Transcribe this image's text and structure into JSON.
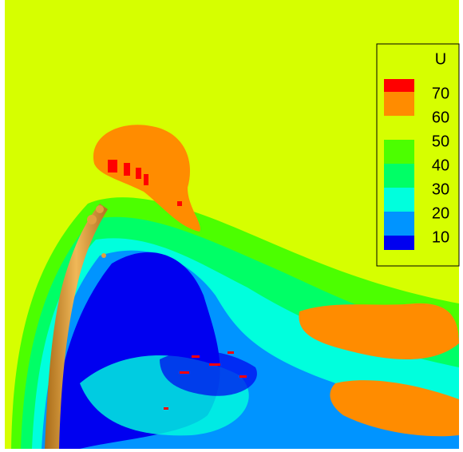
{
  "legend": {
    "title": "U",
    "levels": [
      {
        "label": 70,
        "color": "#ff0000"
      },
      {
        "label": 60,
        "color": "#ff8c00"
      },
      {
        "label": 50,
        "color": "#d6ff00"
      },
      {
        "label": 40,
        "color": "#4cff00"
      },
      {
        "label": 30,
        "color": "#00ff66"
      },
      {
        "label": 20,
        "color": "#00ffdd"
      },
      {
        "label": 10,
        "color": "#0094ff"
      }
    ],
    "bottom_color": "#0000f0"
  }
}
